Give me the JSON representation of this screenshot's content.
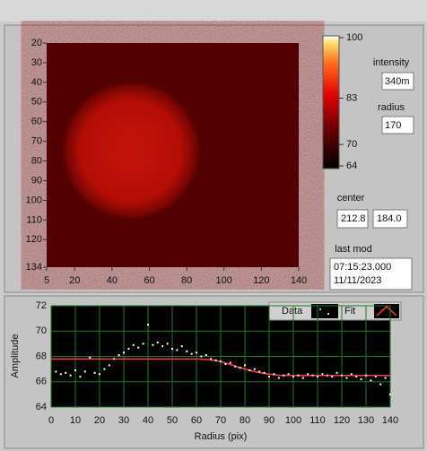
{
  "chart_data": [
    {
      "type": "heatmap",
      "xlim": [
        5,
        140
      ],
      "xticks": [
        5,
        20,
        40,
        60,
        80,
        100,
        120,
        140
      ],
      "ylim": [
        20,
        134
      ],
      "yticks": [
        20,
        30,
        40,
        50,
        60,
        70,
        80,
        90,
        100,
        110,
        120,
        134
      ],
      "zlim": [
        64,
        100
      ],
      "zticks": [
        100,
        83,
        70,
        64
      ]
    },
    {
      "type": "scatter",
      "x_label": "Radius (pix)",
      "y_label": "Amplitude",
      "xlim": [
        0,
        140
      ],
      "xticks": [
        0,
        10,
        20,
        30,
        40,
        50,
        60,
        70,
        80,
        90,
        100,
        110,
        120,
        130,
        140
      ],
      "ylim": [
        64,
        72
      ],
      "yticks": [
        64,
        66,
        68,
        70,
        72
      ],
      "grid": true,
      "series": [
        {
          "name": "Data",
          "color": "#ffffff",
          "x": [
            2,
            4,
            6,
            8,
            10,
            12,
            14,
            16,
            18,
            20,
            22,
            24,
            26,
            28,
            30,
            32,
            34,
            36,
            38,
            40,
            42,
            44,
            46,
            48,
            50,
            52,
            54,
            56,
            58,
            60,
            62,
            64,
            66,
            68,
            70,
            72,
            74,
            76,
            78,
            80,
            82,
            84,
            86,
            88,
            90,
            92,
            94,
            96,
            98,
            100,
            102,
            104,
            106,
            108,
            110,
            112,
            114,
            116,
            118,
            120,
            122,
            124,
            126,
            128,
            130,
            132,
            134,
            136,
            138,
            140
          ],
          "values": [
            66.8,
            66.6,
            66.7,
            66.5,
            66.9,
            66.4,
            66.8,
            67.9,
            66.7,
            66.6,
            67.0,
            67.3,
            67.8,
            68.1,
            68.3,
            68.6,
            68.9,
            68.7,
            69.0,
            70.5,
            68.9,
            69.1,
            68.8,
            69.0,
            68.6,
            68.5,
            68.8,
            68.4,
            68.2,
            68.3,
            68.0,
            68.1,
            67.8,
            67.7,
            67.6,
            67.4,
            67.5,
            67.2,
            67.1,
            67.3,
            66.9,
            67.0,
            66.8,
            66.7,
            66.4,
            66.6,
            66.3,
            66.5,
            66.6,
            66.4,
            66.5,
            66.3,
            66.6,
            66.5,
            66.4,
            66.6,
            66.5,
            66.4,
            66.7,
            66.5,
            66.3,
            66.6,
            66.4,
            66.2,
            66.5,
            66.1,
            66.4,
            65.8,
            66.3,
            65.0
          ]
        },
        {
          "name": "Fit",
          "color": "#ff4040",
          "x": [
            0,
            60,
            65,
            70,
            75,
            80,
            85,
            90,
            95,
            140
          ],
          "values": [
            67.8,
            67.8,
            67.75,
            67.6,
            67.3,
            67.0,
            66.75,
            66.6,
            66.5,
            66.5
          ]
        }
      ]
    }
  ],
  "controls": {
    "intensity": {
      "label": "intensity",
      "value": "340m"
    },
    "radius": {
      "label": "radius",
      "value": "170"
    },
    "center": {
      "label": "center",
      "values": [
        "212.8",
        "184.0"
      ]
    },
    "last_mod": {
      "label": "last mod",
      "lines": [
        "07:15:23.000",
        "11/11/2023"
      ]
    }
  }
}
